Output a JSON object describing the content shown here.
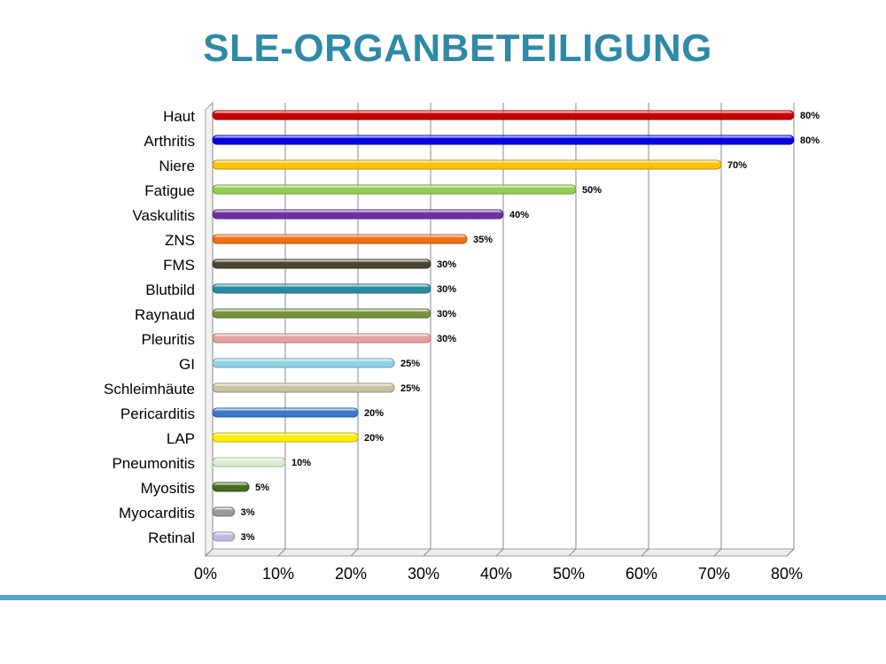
{
  "slide": {
    "title": "SLE-ORGANBETEILIGUNG",
    "title_color": "#2e8aa6",
    "rule_color": "#4ea8cc"
  },
  "chart_data": {
    "type": "bar",
    "orientation": "horizontal",
    "title": "SLE-ORGANBETEILIGUNG",
    "xlabel": "",
    "ylabel": "",
    "xlim": [
      0,
      80
    ],
    "x_ticks": [
      "0%",
      "10%",
      "20%",
      "30%",
      "40%",
      "50%",
      "60%",
      "70%",
      "80%"
    ],
    "grid": "vertical",
    "legend": "none",
    "categories": [
      "Haut",
      "Arthritis",
      "Niere",
      "Fatigue",
      "Vaskulitis",
      "ZNS",
      "FMS",
      "Blutbild",
      "Raynaud",
      "Pleuritis",
      "GI",
      "Schleimhäute",
      "Pericarditis",
      "LAP",
      "Pneumonitis",
      "Myositis",
      "Myocarditis",
      "Retinal"
    ],
    "values": [
      80,
      80,
      70,
      50,
      40,
      35,
      30,
      30,
      30,
      30,
      25,
      25,
      20,
      20,
      10,
      5,
      3,
      3
    ],
    "value_labels": [
      "80%",
      "80%",
      "70%",
      "50%",
      "40%",
      "35%",
      "30%",
      "30%",
      "30%",
      "30%",
      "25%",
      "25%",
      "20%",
      "20%",
      "10%",
      "5%",
      "3%",
      "3%"
    ],
    "colors": [
      "#c80000",
      "#0000e6",
      "#ffc000",
      "#92d050",
      "#7030a0",
      "#f07010",
      "#4a4530",
      "#2a8aa0",
      "#76923c",
      "#e6a0a0",
      "#8cd2e6",
      "#c8c0a0",
      "#3c78c8",
      "#ffee00",
      "#dcecd0",
      "#4a6a22",
      "#9a9a9a",
      "#c8b8e0"
    ]
  }
}
